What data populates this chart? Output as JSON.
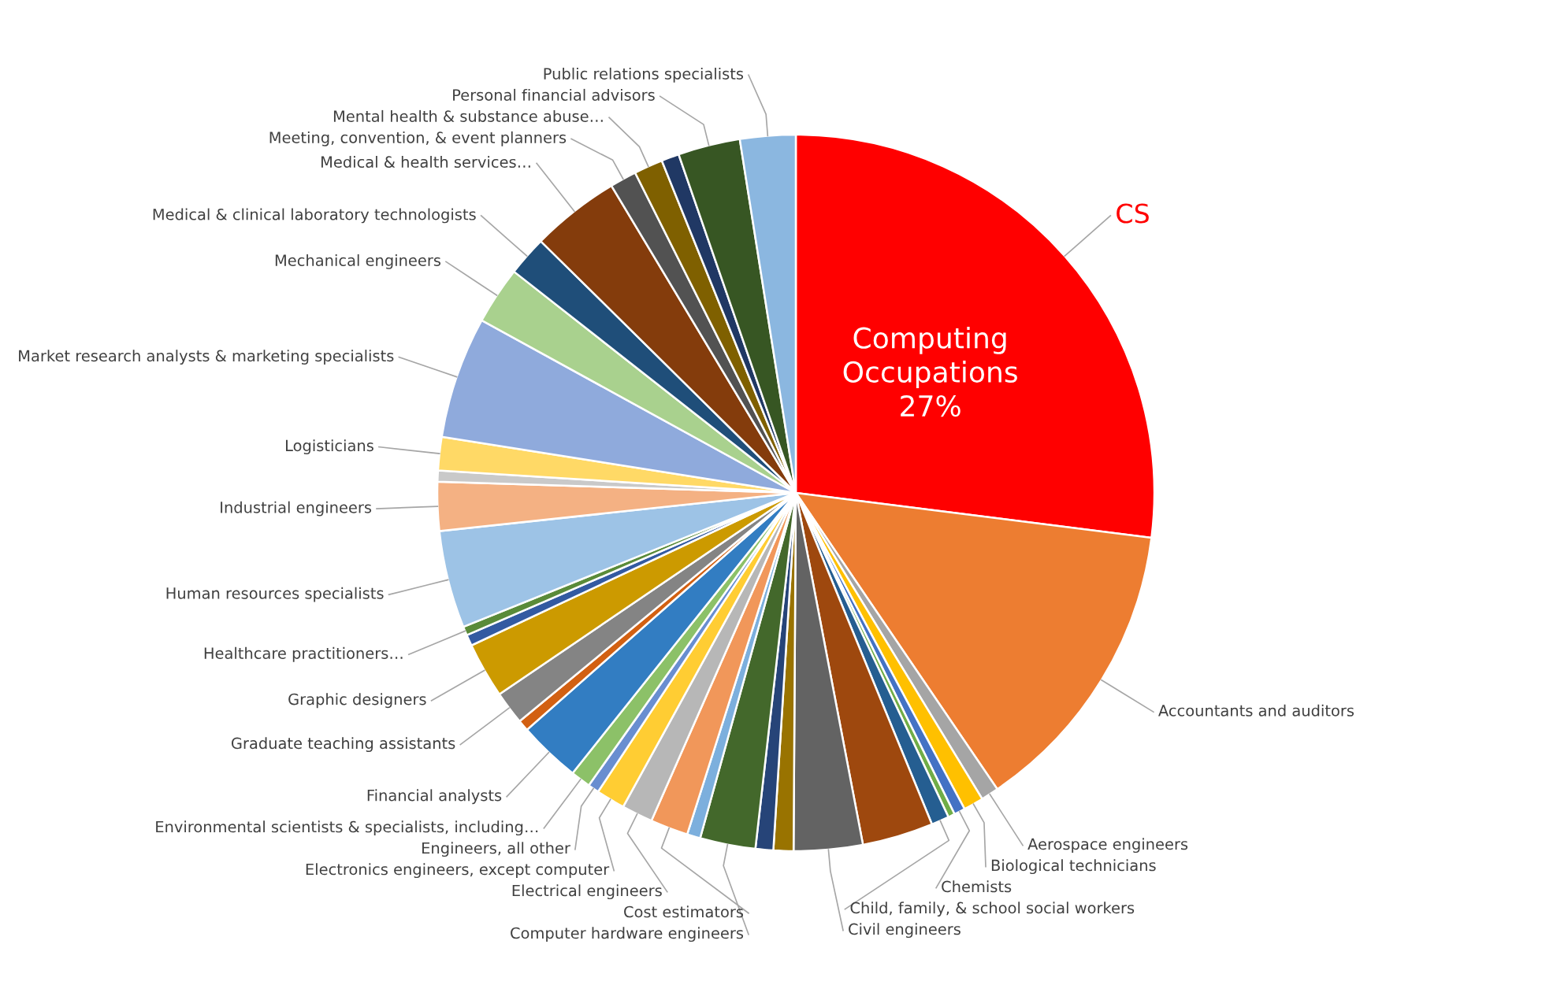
{
  "chart_data": {
    "type": "pie",
    "categories": [
      "CS",
      "Accountants and auditors",
      "Aerospace engineers",
      "Biological technicians",
      "Chemists",
      null,
      "Child, family, & school social workers",
      null,
      "Civil engineers",
      null,
      null,
      "Computer hardware engineers",
      null,
      "Cost estimators",
      "Electrical engineers",
      "Electronics engineers, except computer",
      "Engineers, all other",
      "Environmental scientists & specialists, including…",
      "Financial analysts",
      null,
      "Graduate teaching assistants",
      "Graphic designers",
      null,
      "Healthcare practitioners…",
      "Human resources specialists",
      "Industrial engineers",
      null,
      "Logisticians",
      "Market research analysts & marketing specialists",
      "Mechanical engineers",
      "Medical & clinical laboratory technologists",
      "Medical & health services…",
      "Meeting, convention, & event planners",
      "Mental health & substance abuse…",
      null,
      "Personal financial advisors",
      "Public relations specialists"
    ],
    "values": [
      27,
      13.5,
      0.8,
      0.9,
      0.5,
      0.3,
      0.8,
      3.2,
      3.1,
      0.9,
      0.8,
      2.5,
      0.6,
      1.7,
      1.4,
      1.3,
      0.5,
      0.9,
      2.8,
      0.5,
      1.5,
      2.5,
      0.5,
      0.4,
      4.4,
      2.2,
      0.5,
      1.5,
      5.5,
      2.6,
      1.8,
      4.0,
      1.2,
      1.3,
      0.8,
      2.8,
      2.5
    ],
    "colors": [
      "#ff0000",
      "#ed7d31",
      "#a5a5a5",
      "#ffc000",
      "#4472c4",
      "#70ad47",
      "#255e91",
      "#9e480e",
      "#636363",
      "#997300",
      "#264478",
      "#43682b",
      "#7cafdd",
      "#f1975a",
      "#b7b7b7",
      "#ffcd33",
      "#698ed0",
      "#8cc168",
      "#327dc2",
      "#d26012",
      "#848484",
      "#cc9a00",
      "#335aa1",
      "#5a8b39",
      "#9dc3e6",
      "#f4b183",
      "#c9c9c9",
      "#ffd966",
      "#8faadc",
      "#a9d18e",
      "#1f4e79",
      "#843c0c",
      "#525252",
      "#7f6000",
      "#203864",
      "#375623",
      "#8bb7e0"
    ],
    "annotations": [
      "Computing\nOccupations\n27%"
    ]
  }
}
